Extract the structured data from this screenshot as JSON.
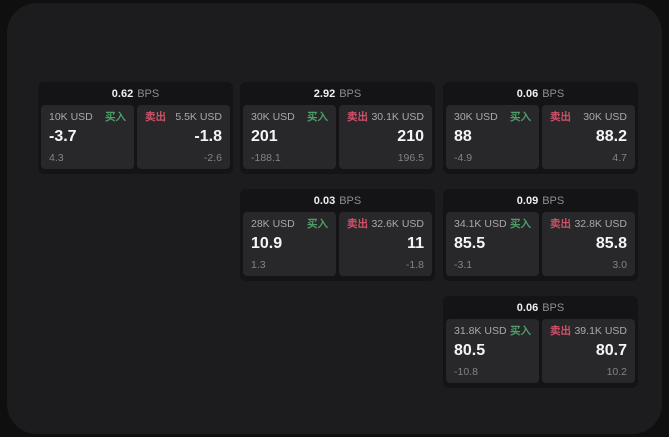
{
  "page": {
    "background": "#0f0f10",
    "panel_background": "#1c1c1e"
  },
  "labels": {
    "bps_unit": "BPS",
    "buy_tag": "买入",
    "sell_tag": "卖出"
  },
  "colors": {
    "buy_green": "#4d9e66",
    "sell_red": "#cf5168"
  },
  "cards": [
    {
      "bps": "0.62",
      "buy": {
        "amount": "10K USD",
        "value": "-3.7",
        "sub": "4.3"
      },
      "sell": {
        "amount": "5.5K USD",
        "value": "-1.8",
        "sub": "-2.6"
      }
    },
    {
      "bps": "2.92",
      "buy": {
        "amount": "30K USD",
        "value": "201",
        "sub": "-188.1"
      },
      "sell": {
        "amount": "30.1K USD",
        "value": "210",
        "sub": "196.5"
      }
    },
    {
      "bps": "0.06",
      "buy": {
        "amount": "30K USD",
        "value": "88",
        "sub": "-4.9"
      },
      "sell": {
        "amount": "30K USD",
        "value": "88.2",
        "sub": "4.7"
      }
    },
    {
      "bps": "0.03",
      "buy": {
        "amount": "28K USD",
        "value": "10.9",
        "sub": "1.3"
      },
      "sell": {
        "amount": "32.6K USD",
        "value": "11",
        "sub": "-1.8"
      }
    },
    {
      "bps": "0.09",
      "buy": {
        "amount": "34.1K USD",
        "value": "85.5",
        "sub": "-3.1"
      },
      "sell": {
        "amount": "32.8K USD",
        "value": "85.8",
        "sub": "3.0"
      }
    },
    {
      "bps": "0.06",
      "buy": {
        "amount": "31.8K USD",
        "value": "80.5",
        "sub": "-10.8"
      },
      "sell": {
        "amount": "39.1K USD",
        "value": "80.7",
        "sub": "10.2"
      }
    }
  ]
}
